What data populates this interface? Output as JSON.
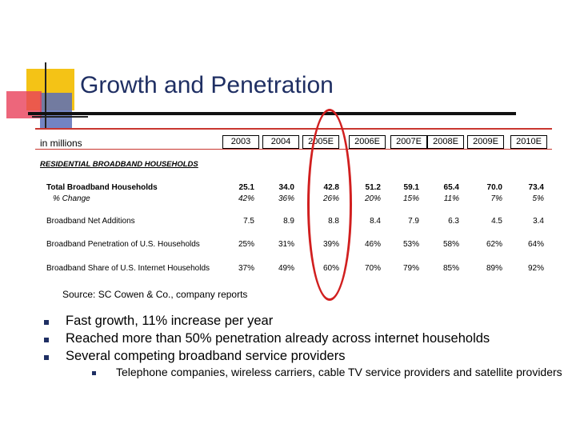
{
  "slide": {
    "title": "Growth and Penetration",
    "accent_colors": {
      "yellow": "#f4c316",
      "blue": "#5b6fb8",
      "red": "#e8405a",
      "title": "#1f2f63"
    }
  },
  "table": {
    "unit_label": "in millions",
    "years": [
      "2003",
      "2004",
      "2005E",
      "2006E",
      "2007E",
      "2008E",
      "2009E",
      "2010E"
    ],
    "section_title": "RESIDENTIAL BROADBAND HOUSEHOLDS",
    "rows": [
      {
        "label": "Total Broadband Households",
        "values": [
          "25.1",
          "34.0",
          "42.8",
          "51.2",
          "59.1",
          "65.4",
          "70.0",
          "73.4"
        ]
      },
      {
        "label": "% Change",
        "values": [
          "42%",
          "36%",
          "26%",
          "20%",
          "15%",
          "11%",
          "7%",
          "5%"
        ]
      },
      {
        "label": "Broadband Net Additions",
        "values": [
          "7.5",
          "8.9",
          "8.8",
          "8.4",
          "7.9",
          "6.3",
          "4.5",
          "3.4"
        ]
      },
      {
        "label": "Broadband Penetration of U.S. Households",
        "values": [
          "25%",
          "31%",
          "39%",
          "46%",
          "53%",
          "58%",
          "62%",
          "64%"
        ]
      },
      {
        "label": "Broadband Share of U.S. Internet Households",
        "values": [
          "37%",
          "49%",
          "60%",
          "70%",
          "79%",
          "85%",
          "89%",
          "92%"
        ]
      }
    ],
    "source": "Source:  SC Cowen & Co., company reports",
    "highlight_column": "2005E"
  },
  "bullets": [
    "Fast growth, 11% increase per year",
    "Reached more than 50% penetration already across internet households",
    "Several competing broadband service providers"
  ],
  "sub_bullet": "Telephone companies, wireless carriers, cable TV service providers and satellite providers"
}
